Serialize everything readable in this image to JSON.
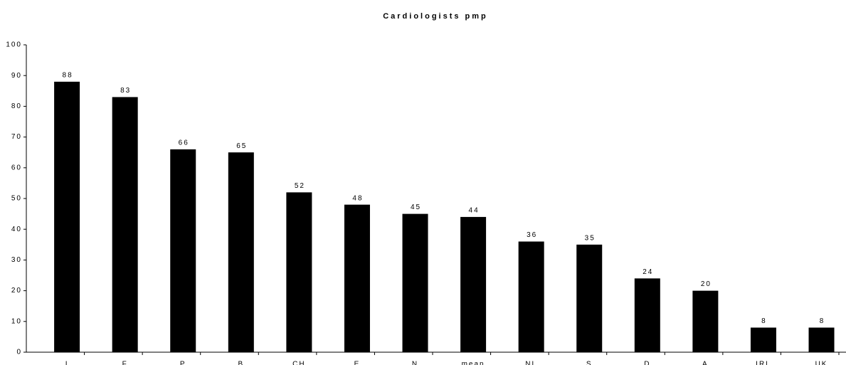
{
  "chart_data": {
    "type": "bar",
    "title": "Cardiologists pmp",
    "categories": [
      "I",
      "F",
      "P",
      "B",
      "CH",
      "E",
      "N",
      "mean",
      "NL",
      "S",
      "D",
      "A",
      "IRL",
      "UK"
    ],
    "values": [
      88,
      83,
      66,
      65,
      52,
      48,
      45,
      44,
      36,
      35,
      24,
      20,
      8,
      8
    ],
    "color": "#000000",
    "ylim": [
      0,
      100
    ],
    "yticks": [
      0,
      10,
      20,
      30,
      40,
      50,
      60,
      70,
      80,
      90,
      100
    ],
    "grid": false
  }
}
